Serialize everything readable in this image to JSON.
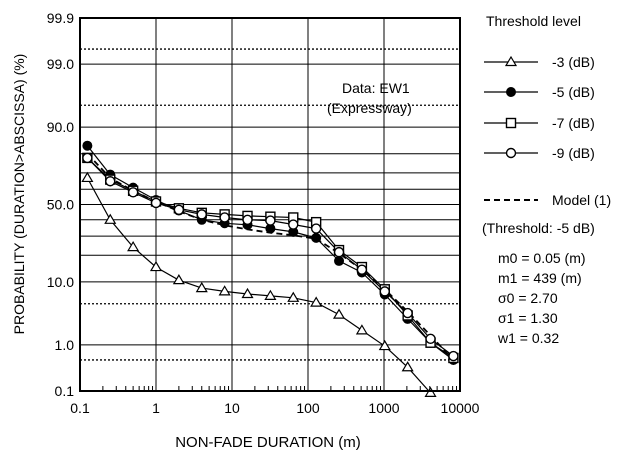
{
  "chart_data": {
    "type": "line",
    "title": "",
    "xlabel": "NON-FADE DURATION (m)",
    "ylabel": "PROBABILITY (DURATION>ABSCISSA) (%)",
    "x_scale": "log",
    "y_scale": "normal-probability",
    "xlim": [
      0.1,
      10000
    ],
    "ylim": [
      0.1,
      99.9
    ],
    "x_ticks": [
      0.1,
      1,
      10,
      100,
      1000,
      10000
    ],
    "x_tick_labels": [
      "0.1",
      "1",
      "10",
      "100",
      "1000",
      "10000"
    ],
    "y_ticks": [
      0.1,
      1.0,
      10.0,
      50.0,
      90.0,
      99.0,
      99.9
    ],
    "y_tick_labels": [
      "0.1",
      "1.0",
      "10.0",
      "50.0",
      "90.0",
      "99.0",
      "99.9"
    ],
    "y_solid_gridlines": [
      0.1,
      1,
      10,
      20,
      30,
      40,
      50,
      60,
      70,
      80,
      90,
      99,
      99.9
    ],
    "y_dotted_gridlines": [
      0.5,
      5,
      95,
      99.5
    ],
    "legend_title": "Threshold level",
    "legend_position": "right",
    "annotation": {
      "line1": "Data: EW1",
      "line2": "(Expressway)"
    },
    "series": [
      {
        "name": "-3 (dB)",
        "marker": "triangle",
        "x": [
          0.125,
          0.25,
          0.5,
          1,
          2,
          4,
          8,
          16,
          32,
          64,
          128,
          256,
          512,
          1024,
          2048,
          4096
        ],
        "y": [
          67,
          40,
          24,
          15,
          10.5,
          8.3,
          7.5,
          6.9,
          6.5,
          6.1,
          5.2,
          3.4,
          1.85,
          0.95,
          0.35,
          0.09
        ]
      },
      {
        "name": "-5 (dB)",
        "marker": "filled-circle",
        "x": [
          0.125,
          0.25,
          0.5,
          1,
          2,
          4,
          8,
          16,
          32,
          64,
          128,
          256,
          512,
          1024,
          2048,
          4096,
          8192
        ],
        "y": [
          83.5,
          69,
          61,
          53,
          46,
          40,
          37.8,
          36.8,
          34.5,
          32.5,
          29,
          17.5,
          13,
          6.8,
          2.9,
          1.1,
          0.5
        ]
      },
      {
        "name": "-7 (dB)",
        "marker": "open-square",
        "x": [
          0.125,
          0.25,
          0.5,
          1,
          2,
          4,
          8,
          16,
          32,
          64,
          128,
          256,
          512,
          1024,
          2048,
          4096,
          8192
        ],
        "y": [
          78,
          66,
          59,
          52,
          47.5,
          44.5,
          43.5,
          42.5,
          42,
          41.5,
          38.5,
          22.5,
          15,
          8,
          3.3,
          1.1,
          0.55
        ]
      },
      {
        "name": "-9 (dB)",
        "marker": "open-circle",
        "x": [
          0.125,
          0.25,
          0.5,
          1,
          2,
          4,
          8,
          16,
          32,
          64,
          128,
          256,
          512,
          1024,
          2048,
          4096,
          8192
        ],
        "y": [
          78,
          65,
          58,
          51,
          46.5,
          43.5,
          41.5,
          40,
          39.5,
          37,
          34.5,
          21.5,
          14,
          7.5,
          3.6,
          1.3,
          0.6
        ]
      },
      {
        "name": "Model (1)",
        "marker": "none",
        "style": "dashed",
        "note": "(Threshold: -5 dB)",
        "x": [
          0.125,
          0.25,
          0.5,
          1,
          2,
          4,
          8,
          16,
          32,
          64,
          128,
          256,
          512,
          1024,
          2048,
          4096,
          8192
        ],
        "y": [
          80,
          67,
          59,
          52,
          45.5,
          40,
          36.5,
          34,
          32,
          30.5,
          28.5,
          21,
          14,
          8,
          3.8,
          1.5,
          0.5
        ]
      }
    ],
    "params": [
      "m0 = 0.05 (m)",
      "m1 = 439 (m)",
      "σ0  = 2.70",
      "σ1  = 1.30",
      "w1 = 0.32"
    ]
  }
}
